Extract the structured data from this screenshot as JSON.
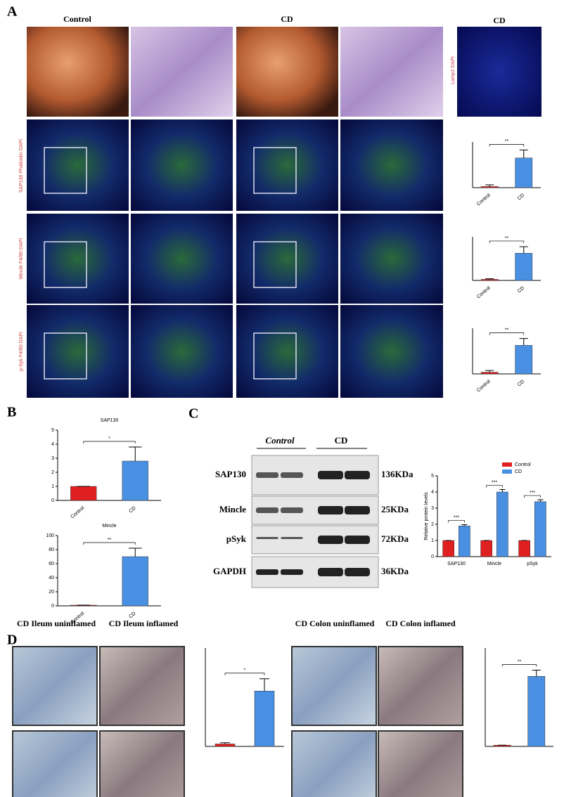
{
  "panels": {
    "a": "A",
    "b": "B",
    "c": "C",
    "d": "D"
  },
  "panel_a": {
    "col_headers": [
      "Control",
      "CD"
    ],
    "side_header": "CD",
    "side_label": "Lamp2 DAPI",
    "row_labels": [
      "SAP130 Phalloidin DAPI",
      "Mincle F4/80 DAPI",
      "p-Syk F4/80 DAPI"
    ]
  },
  "blot": {
    "groups": [
      "Control",
      "CD"
    ],
    "rows": [
      {
        "name": "SAP130",
        "size": "136KDa"
      },
      {
        "name": "Mincle",
        "size": "25KDa"
      },
      {
        "name": "pSyk",
        "size": "72KDa"
      },
      {
        "name": "GAPDH",
        "size": "36KDa"
      }
    ]
  },
  "panel_d": {
    "labels": [
      "CD Ileum uninflamed",
      "CD Ileum inflamed",
      "CD Colon uninflamed",
      "CD Colon inflamed"
    ]
  },
  "charts": [
    {
      "type": "bar",
      "categories": [
        "Control",
        "CD"
      ],
      "values": [
        2,
        52
      ],
      "errors": [
        3,
        14
      ],
      "colors": [
        "#e02020",
        "#4a90e2"
      ],
      "ylim": [
        0,
        80
      ],
      "significance": [
        "**"
      ]
    },
    {
      "type": "bar",
      "categories": [
        "Control",
        "CD"
      ],
      "values": [
        2,
        50
      ],
      "errors": [
        1,
        12
      ],
      "colors": [
        "#e02020",
        "#4a90e2"
      ],
      "ylim": [
        0,
        80
      ],
      "significance": [
        "**"
      ]
    },
    {
      "type": "bar",
      "categories": [
        "Control",
        "CD"
      ],
      "values": [
        3,
        50
      ],
      "errors": [
        3,
        12
      ],
      "colors": [
        "#e02020",
        "#4a90e2"
      ],
      "ylim": [
        0,
        80
      ],
      "significance": [
        "**"
      ]
    },
    {
      "type": "bar",
      "title": "SAP130",
      "categories": [
        "Control",
        "CD"
      ],
      "values": [
        1,
        2.8
      ],
      "errors": [
        0,
        1
      ],
      "colors": [
        "#e02020",
        "#4a90e2"
      ],
      "ylim": [
        0,
        5
      ],
      "yticks": [
        0,
        1,
        2,
        3,
        4,
        5
      ],
      "significance": [
        "*"
      ]
    },
    {
      "type": "bar",
      "title": "Mincle",
      "categories": [
        "Control",
        "CD"
      ],
      "values": [
        1,
        70
      ],
      "errors": [
        0,
        12
      ],
      "colors": [
        "#e02020",
        "#4a90e2"
      ],
      "ylim": [
        0,
        100
      ],
      "yticks": [
        0,
        20,
        40,
        60,
        80,
        100
      ],
      "significance": [
        "**"
      ]
    },
    {
      "type": "grouped",
      "categories": [
        "SAP130",
        "Mincle",
        "pSyk"
      ],
      "ylabel": "Relative protein levels",
      "ylim": [
        0,
        5
      ],
      "yticks": [
        0,
        1,
        2,
        3,
        4,
        5
      ],
      "series": [
        {
          "name": "Control",
          "color": "#e02020",
          "values": [
            1,
            1,
            1
          ],
          "errors": [
            0,
            0,
            0
          ]
        },
        {
          "name": "CD",
          "color": "#4a90e2",
          "values": [
            1.9,
            4,
            3.4
          ],
          "errors": [
            0.08,
            0.15,
            0.12
          ]
        }
      ],
      "significance": [
        "***",
        "***",
        "***"
      ]
    },
    {
      "type": "bar",
      "categories": [
        null,
        null
      ],
      "values": [
        2,
        45
      ],
      "errors": [
        1,
        10
      ],
      "colors": [
        "#e02020",
        "#4a90e2"
      ],
      "ylim": [
        0,
        80
      ],
      "significance": [
        "*"
      ]
    },
    {
      "type": "bar",
      "categories": [
        null,
        null
      ],
      "values": [
        1,
        57
      ],
      "errors": [
        0,
        5
      ],
      "colors": [
        "#e02020",
        "#4a90e2"
      ],
      "ylim": [
        0,
        80
      ],
      "significance": [
        "**"
      ]
    }
  ]
}
